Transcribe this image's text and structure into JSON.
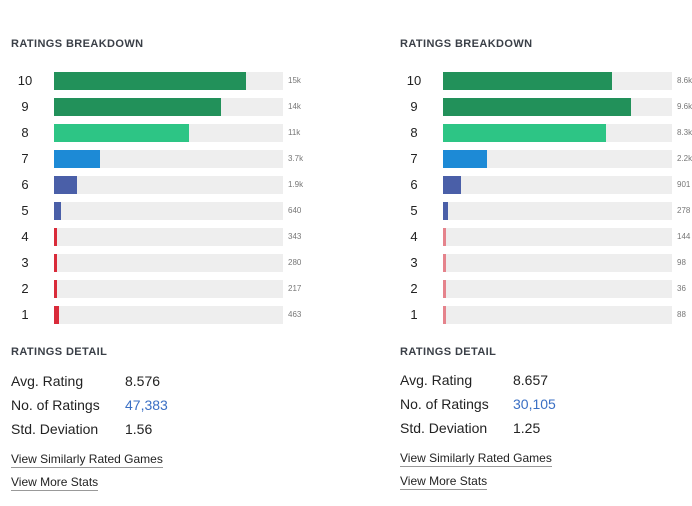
{
  "panels": [
    {
      "breakdown_title": "RATINGS BREAKDOWN",
      "rows": [
        {
          "label": "10",
          "count": "15k",
          "level": 0.84,
          "color": "#22915a"
        },
        {
          "label": "9",
          "count": "14k",
          "level": 0.73,
          "color": "#22915a"
        },
        {
          "label": "8",
          "count": "11k",
          "level": 0.59,
          "color": "#2dc585"
        },
        {
          "label": "7",
          "count": "3.7k",
          "level": 0.2,
          "color": "#1d8ad6"
        },
        {
          "label": "6",
          "count": "1.9k",
          "level": 0.1,
          "color": "#4a5fa8"
        },
        {
          "label": "5",
          "count": "640",
          "level": 0.03,
          "color": "#4a5fa8"
        },
        {
          "label": "4",
          "count": "343",
          "level": 0.015,
          "color": "#d92b3a"
        },
        {
          "label": "3",
          "count": "280",
          "level": 0.012,
          "color": "#d92b3a"
        },
        {
          "label": "2",
          "count": "217",
          "level": 0.01,
          "color": "#d92b3a"
        },
        {
          "label": "1",
          "count": "463",
          "level": 0.02,
          "color": "#d92b3a"
        }
      ],
      "detail_title": "RATINGS DETAIL",
      "avg_label": "Avg. Rating",
      "avg_value": "8.576",
      "num_label": "No. of Ratings",
      "num_value": "47,383",
      "std_label": "Std. Deviation",
      "std_value": "1.56",
      "similar_link": "View Similarly Rated Games",
      "more_link": "View More Stats"
    },
    {
      "breakdown_title": "RATINGS BREAKDOWN",
      "rows": [
        {
          "label": "10",
          "count": "8.6k",
          "level": 0.74,
          "color": "#22915a"
        },
        {
          "label": "9",
          "count": "9.6k",
          "level": 0.82,
          "color": "#22915a"
        },
        {
          "label": "8",
          "count": "8.3k",
          "level": 0.71,
          "color": "#2dc585"
        },
        {
          "label": "7",
          "count": "2.2k",
          "level": 0.19,
          "color": "#1d8ad6"
        },
        {
          "label": "6",
          "count": "901",
          "level": 0.077,
          "color": "#4a5fa8"
        },
        {
          "label": "5",
          "count": "278",
          "level": 0.024,
          "color": "#4a5fa8"
        },
        {
          "label": "4",
          "count": "144",
          "level": 0.012,
          "color": "#e5838c"
        },
        {
          "label": "3",
          "count": "98",
          "level": 0.009,
          "color": "#e5838c"
        },
        {
          "label": "2",
          "count": "36",
          "level": 0.005,
          "color": "#e5838c"
        },
        {
          "label": "1",
          "count": "88",
          "level": 0.008,
          "color": "#e5838c"
        }
      ],
      "detail_title": "RATINGS DETAIL",
      "avg_label": "Avg. Rating",
      "avg_value": "8.657",
      "num_label": "No. of Ratings",
      "num_value": "30,105",
      "std_label": "Std. Deviation",
      "std_value": "1.25",
      "similar_link": "View Similarly Rated Games",
      "more_link": "View More Stats"
    }
  ]
}
